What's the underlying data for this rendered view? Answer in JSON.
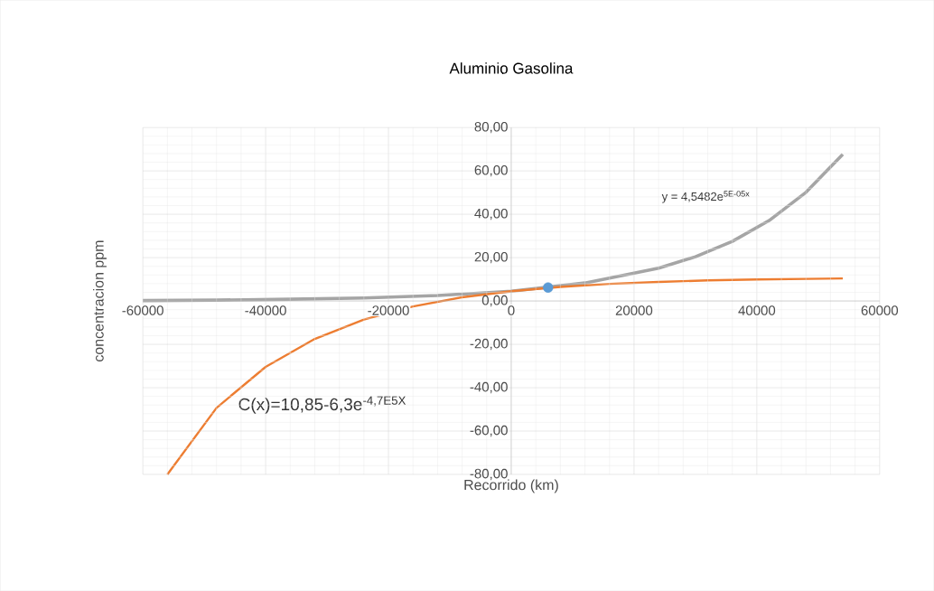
{
  "chart_data": {
    "type": "line",
    "title": "Aluminio Gasolina",
    "xlabel": "Recorrido (km)",
    "ylabel": "concentracion ppm",
    "series": [
      {
        "color": "#a5a5a5",
        "x": [
          -60000,
          -48000,
          -36000,
          -24000,
          -12000,
          0,
          12000,
          24000,
          30000,
          36000,
          42000,
          48000,
          54000
        ],
        "values": [
          0.2,
          0.4,
          0.8,
          1.4,
          2.5,
          4.5,
          8.3,
          15.1,
          20.4,
          27.5,
          37.1,
          50.1,
          67.7
        ]
      },
      {
        "color": "#ed7d31",
        "x": [
          -56000,
          -48000,
          -40000,
          -32000,
          -24000,
          -16000,
          -8000,
          0,
          8000,
          16000,
          24000,
          32000,
          40000,
          48000,
          54000
        ],
        "values": [
          -80,
          -49.3,
          -30.4,
          -17.5,
          -8.6,
          -2.5,
          1.7,
          4.5,
          6.5,
          7.9,
          8.8,
          9.5,
          9.9,
          10.2,
          10.4
        ]
      },
      {
        "type": "scatter",
        "color": "#5b9bd5",
        "marker": "circle",
        "x": [
          6000
        ],
        "values": [
          6.2
        ]
      }
    ],
    "annotations": [
      "y = 4,5482e$^{5E-05x}$",
      "C(x)=10,85-6,3e$^{-4,7E5X}$"
    ],
    "xlim": [
      -60000,
      60000
    ],
    "ylim": [
      -80,
      80
    ],
    "xticks": [
      -60000,
      -40000,
      -20000,
      0,
      20000,
      40000,
      60000
    ],
    "yticks": [
      {
        "value": -80,
        "label": "-80,00"
      },
      {
        "value": -60,
        "label": "-60,00"
      },
      {
        "value": -40,
        "label": "-40,00"
      },
      {
        "value": -20,
        "label": "-20,00"
      },
      {
        "value": 0,
        "label": "0,00"
      },
      {
        "value": 20,
        "label": "20,00"
      },
      {
        "value": 40,
        "label": "40,00"
      },
      {
        "value": 60,
        "label": "60,00"
      },
      {
        "value": 80,
        "label": "80,00"
      }
    ],
    "grid": true
  }
}
